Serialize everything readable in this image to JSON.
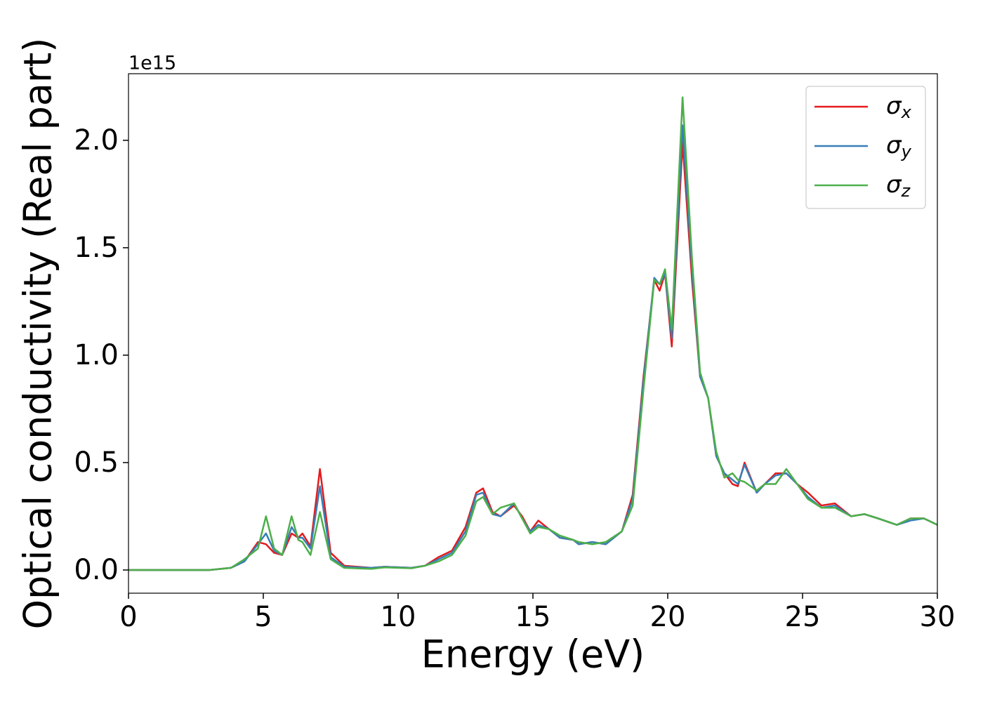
{
  "chart_data": {
    "type": "line",
    "xlabel": "Energy (eV)",
    "ylabel": "Optical conductivity (Real part)",
    "y_offset_label": "1e15",
    "xlim": [
      0,
      30
    ],
    "xticks": [
      0,
      5,
      10,
      15,
      20,
      25,
      30
    ],
    "ylim": [
      -0.108,
      2.31
    ],
    "yticks": [
      {
        "value": 0,
        "label": "0.0"
      },
      0.5,
      {
        "value": 1,
        "label": "1.0"
      },
      1.5,
      {
        "value": 2,
        "label": "2.0"
      }
    ],
    "grid": false,
    "legend": "upper right",
    "x": [
      0,
      3,
      3.8,
      4.3,
      4.8,
      5.1,
      5.4,
      5.7,
      6.05,
      6.3,
      6.45,
      6.75,
      7.1,
      7.5,
      8,
      9,
      9.5,
      10.5,
      11,
      11.5,
      12,
      12.5,
      12.9,
      13.15,
      13.5,
      13.8,
      14.3,
      14.6,
      14.9,
      15.2,
      15.6,
      16,
      16.5,
      16.7,
      17.2,
      17.7,
      18.3,
      18.7,
      19.1,
      19.5,
      19.7,
      19.9,
      20.15,
      20.55,
      20.9,
      21.2,
      21.5,
      21.8,
      22.1,
      22.4,
      22.6,
      22.85,
      23.3,
      23.6,
      24,
      24.4,
      24.8,
      25.2,
      25.7,
      26.2,
      26.8,
      27.3,
      27.8,
      28.5,
      29,
      29.5,
      30
    ],
    "series": [
      {
        "name": "σx",
        "color": "#e41a1c",
        "values": [
          0,
          0,
          0.01,
          0.04,
          0.13,
          0.12,
          0.08,
          0.07,
          0.17,
          0.15,
          0.17,
          0.11,
          0.47,
          0.08,
          0.02,
          0.01,
          0.015,
          0.01,
          0.02,
          0.06,
          0.09,
          0.2,
          0.36,
          0.38,
          0.27,
          0.25,
          0.3,
          0.25,
          0.18,
          0.23,
          0.19,
          0.15,
          0.14,
          0.12,
          0.13,
          0.12,
          0.18,
          0.35,
          0.9,
          1.35,
          1.3,
          1.38,
          1.04,
          1.99,
          1.35,
          0.9,
          0.8,
          0.53,
          0.45,
          0.4,
          0.39,
          0.5,
          0.36,
          0.4,
          0.45,
          0.45,
          0.4,
          0.36,
          0.3,
          0.31,
          0.25,
          0.26,
          0.24,
          0.21,
          0.24,
          0.24,
          0.21
        ]
      },
      {
        "name": "σy",
        "color": "#377eb8",
        "values": [
          0,
          0,
          0.01,
          0.04,
          0.12,
          0.17,
          0.09,
          0.07,
          0.2,
          0.15,
          0.15,
          0.1,
          0.39,
          0.06,
          0.015,
          0.01,
          0.015,
          0.01,
          0.02,
          0.05,
          0.08,
          0.18,
          0.35,
          0.36,
          0.26,
          0.25,
          0.31,
          0.24,
          0.18,
          0.21,
          0.19,
          0.15,
          0.14,
          0.12,
          0.13,
          0.12,
          0.18,
          0.33,
          0.88,
          1.36,
          1.33,
          1.38,
          1.08,
          2.07,
          1.4,
          0.9,
          0.8,
          0.53,
          0.45,
          0.42,
          0.4,
          0.49,
          0.36,
          0.4,
          0.44,
          0.45,
          0.4,
          0.34,
          0.29,
          0.3,
          0.25,
          0.26,
          0.24,
          0.21,
          0.23,
          0.24,
          0.21
        ]
      },
      {
        "name": "σz",
        "color": "#4daf4a",
        "values": [
          0,
          0,
          0.01,
          0.05,
          0.1,
          0.25,
          0.1,
          0.07,
          0.25,
          0.14,
          0.13,
          0.07,
          0.27,
          0.05,
          0.01,
          0.005,
          0.012,
          0.008,
          0.02,
          0.04,
          0.07,
          0.16,
          0.32,
          0.34,
          0.26,
          0.29,
          0.31,
          0.24,
          0.17,
          0.2,
          0.19,
          0.16,
          0.14,
          0.13,
          0.12,
          0.13,
          0.18,
          0.3,
          0.84,
          1.35,
          1.33,
          1.4,
          1.12,
          2.2,
          1.45,
          0.92,
          0.8,
          0.55,
          0.43,
          0.45,
          0.42,
          0.41,
          0.37,
          0.4,
          0.4,
          0.47,
          0.4,
          0.33,
          0.29,
          0.29,
          0.25,
          0.26,
          0.24,
          0.21,
          0.24,
          0.24,
          0.21
        ]
      }
    ]
  }
}
